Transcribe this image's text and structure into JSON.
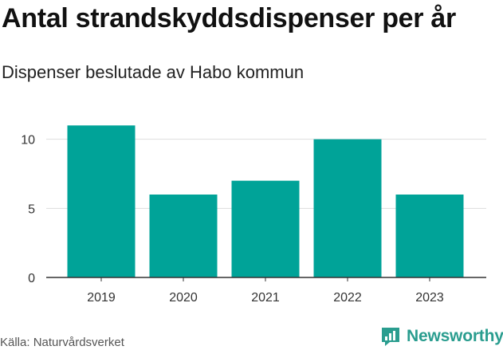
{
  "title": "Antal strandskyddsdispenser per år",
  "subtitle": "Dispenser beslutade av Habo kommun",
  "source": "Källa: Naturvårdsverket",
  "brand": {
    "name": "Newsworthy",
    "icon": "newsworthy-logo-icon",
    "color": "#2a9d8f"
  },
  "colors": {
    "bar": "#00a398",
    "grid": "#dddddd",
    "axis": "#333333"
  },
  "chart_data": {
    "type": "bar",
    "title": "Antal strandskyddsdispenser per år",
    "subtitle": "Dispenser beslutade av Habo kommun",
    "categories": [
      "2019",
      "2020",
      "2021",
      "2022",
      "2023"
    ],
    "values": [
      11,
      6,
      7,
      10,
      6
    ],
    "xlabel": "",
    "ylabel": "",
    "ylim": [
      0,
      12
    ],
    "yticks": [
      0,
      5,
      10
    ],
    "grid": true,
    "legend": "none"
  }
}
